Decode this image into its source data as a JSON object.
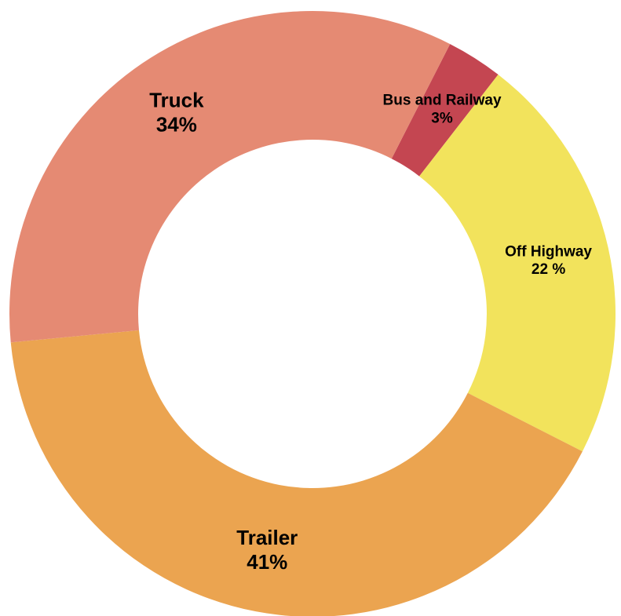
{
  "chart_data": {
    "type": "donut",
    "categories": [
      "Bus and Railway",
      "Off Highway",
      "Trailer",
      "Truck"
    ],
    "values": [
      3,
      22,
      41,
      34
    ],
    "value_labels": [
      "3%",
      "22 %",
      "41%",
      "34%"
    ],
    "colors": [
      "#c44651",
      "#f2e35c",
      "#eba450",
      "#e58a73"
    ]
  }
}
